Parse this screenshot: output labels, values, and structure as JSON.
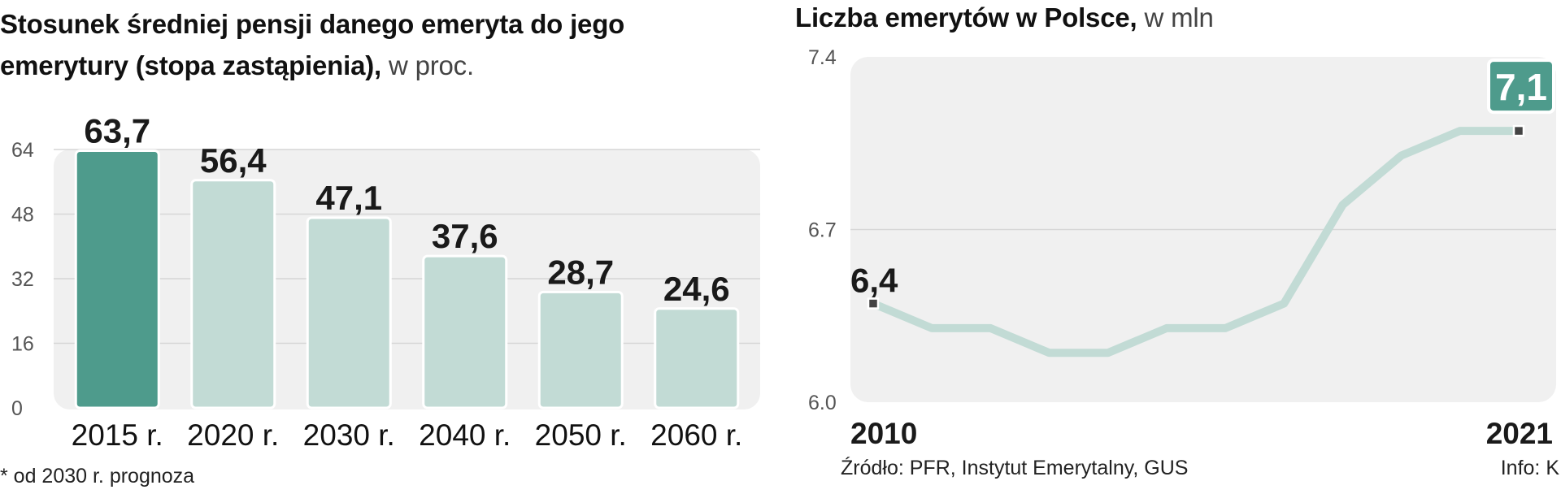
{
  "left": {
    "title_bold": "Stosunek średniej pensji danego emeryta do jego emerytury (stopa zastąpienia),",
    "title_unit": " w proc.",
    "footnote": "* od 2030 r. prognoza"
  },
  "right": {
    "title_bold": "Liczba emerytów w Polsce,",
    "title_unit": " w mln",
    "source": "Źródło: PFR, Instytut Emerytalny, GUS",
    "info": "Info: K"
  },
  "colors": {
    "highlight": "#4e9b8c",
    "bar": "#c2dbd5",
    "line": "#c2dbd5",
    "panel": "#f0f0f0",
    "badge": "#4e9b8c"
  },
  "chart_data": [
    {
      "type": "bar",
      "title": "Stosunek średniej pensji danego emeryta do jego emerytury (stopa zastąpienia), w proc.",
      "categories": [
        "2015 r.",
        "2020 r.",
        "2030 r.",
        "2040 r.",
        "2050 r.",
        "2060 r."
      ],
      "values": [
        63.7,
        56.4,
        47.1,
        37.6,
        28.7,
        24.6
      ],
      "value_labels": [
        "63,7",
        "56,4",
        "47,1",
        "37,6",
        "28,7",
        "24,6"
      ],
      "highlight_index": 0,
      "yticks": [
        0,
        16,
        32,
        48,
        64
      ],
      "ylim": [
        0,
        64
      ],
      "xlabel": "",
      "ylabel": ""
    },
    {
      "type": "line",
      "title": "Liczba emerytów w Polsce, w mln",
      "x": [
        2010,
        2011,
        2012,
        2013,
        2014,
        2015,
        2016,
        2017,
        2018,
        2019,
        2020,
        2021
      ],
      "values": [
        6.4,
        6.3,
        6.3,
        6.2,
        6.2,
        6.3,
        6.3,
        6.4,
        6.8,
        7.0,
        7.1,
        7.1
      ],
      "yticks": [
        6.0,
        6.7,
        7.4
      ],
      "ytick_labels": [
        "6.0",
        "6.7",
        "7.4"
      ],
      "ylim": [
        6.0,
        7.4
      ],
      "xtick_labels": [
        "2010",
        "2021"
      ],
      "start_label": "6,4",
      "end_label": "7,1",
      "xlabel": "",
      "ylabel": ""
    }
  ]
}
